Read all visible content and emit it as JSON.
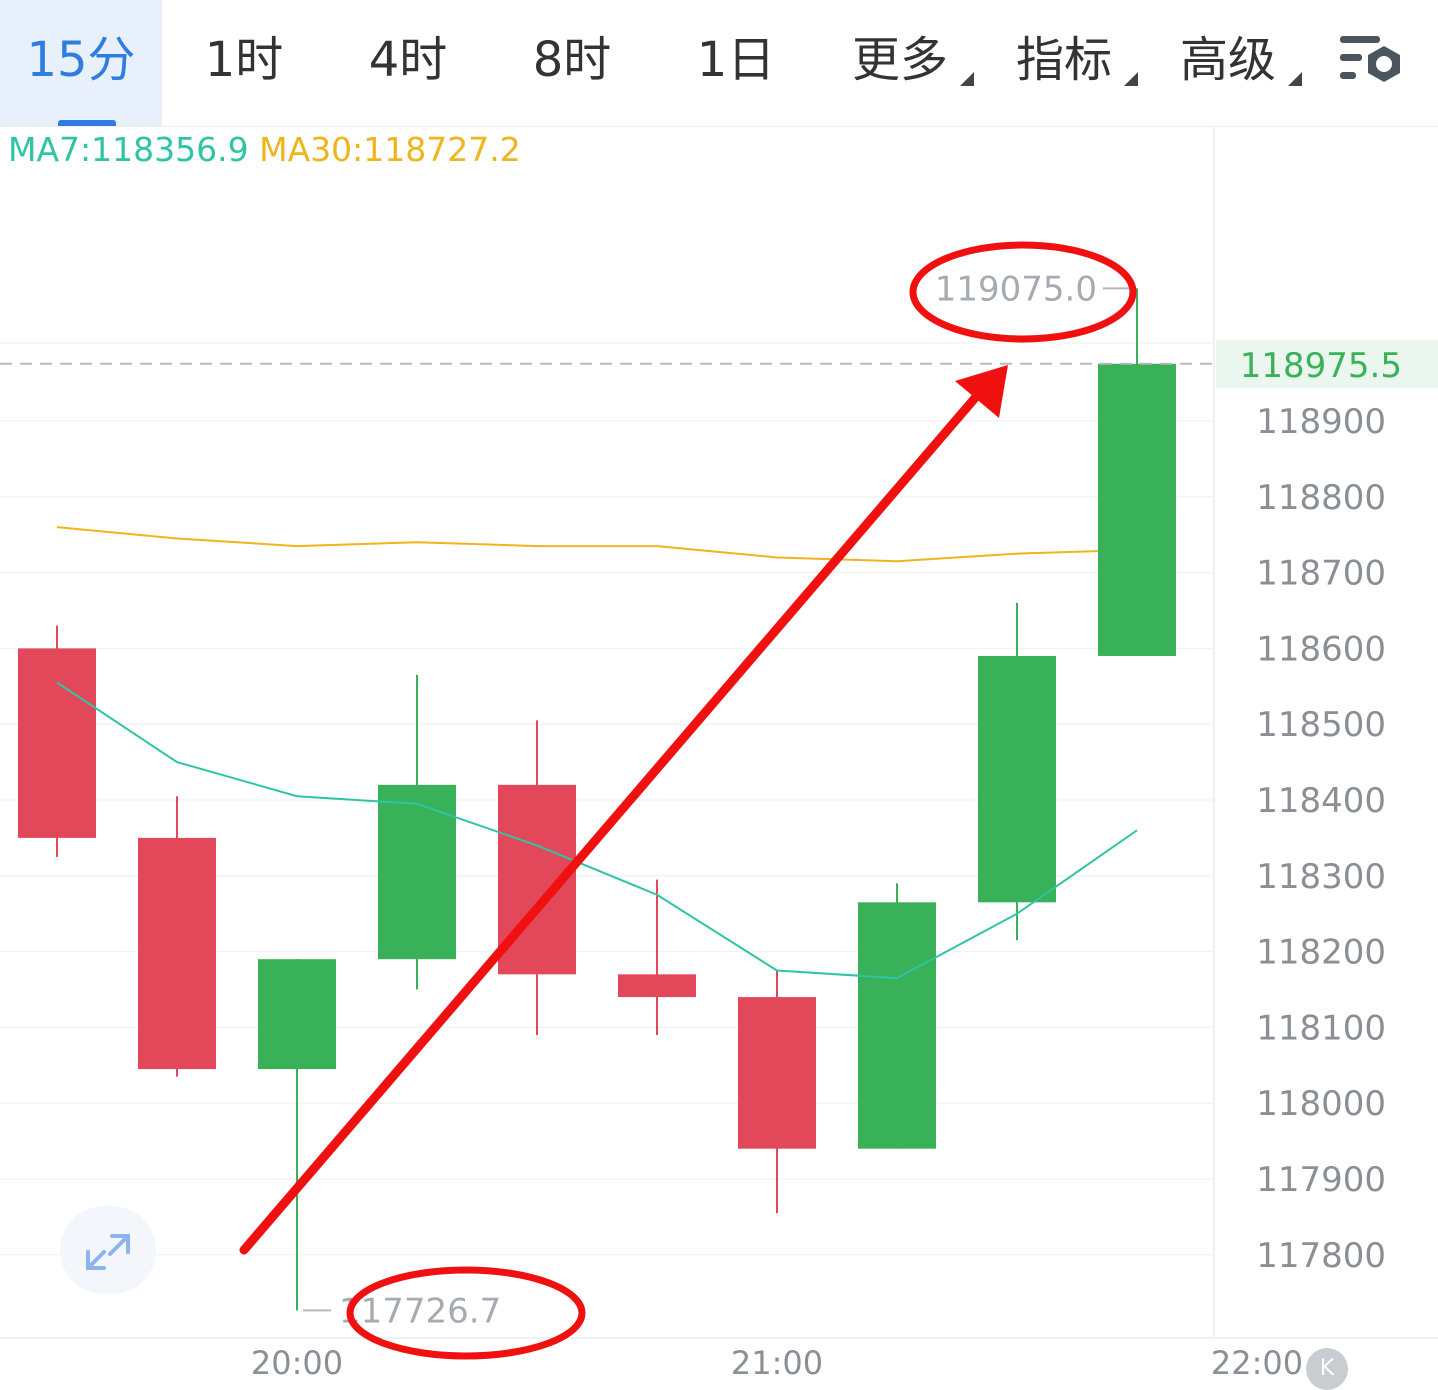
{
  "tabs": [
    {
      "label": "15分",
      "active": true,
      "dropdown": false
    },
    {
      "label": "1时",
      "active": false,
      "dropdown": false
    },
    {
      "label": "4时",
      "active": false,
      "dropdown": false
    },
    {
      "label": "8时",
      "active": false,
      "dropdown": false
    },
    {
      "label": "1日",
      "active": false,
      "dropdown": false
    },
    {
      "label": "更多",
      "active": false,
      "dropdown": true
    },
    {
      "label": "指标",
      "active": false,
      "dropdown": true
    },
    {
      "label": "高级",
      "active": false,
      "dropdown": true
    }
  ],
  "settings_icon": "chart-settings-icon",
  "ma": {
    "ma7_label": "MA7:118356.9",
    "ma30_label": "MA30:118727.2",
    "ma7_color": "#2fc4a4",
    "ma30_color": "#f0b41c"
  },
  "colors": {
    "up": "#38b158",
    "down": "#e2485a",
    "annotation": "#f01010"
  },
  "chart_data": {
    "type": "candlestick",
    "title": "",
    "x_ticks": [
      "20:00",
      "21:00",
      "22:00"
    ],
    "y_ticks": [
      118900,
      118800,
      118700,
      118600,
      118500,
      118400,
      118300,
      118200,
      118100,
      118000,
      117900,
      117800
    ],
    "ylim": [
      117700,
      119150
    ],
    "candles": [
      {
        "open": 118600,
        "high": 118630,
        "low": 118325,
        "close": 118350
      },
      {
        "open": 118350,
        "high": 118405,
        "low": 118035,
        "close": 118045
      },
      {
        "open": 118045,
        "high": 118190,
        "low": 117726.7,
        "close": 118190
      },
      {
        "open": 118190,
        "high": 118565,
        "low": 118150,
        "close": 118420
      },
      {
        "open": 118420,
        "high": 118505,
        "low": 118090,
        "close": 118170
      },
      {
        "open": 118170,
        "high": 118295,
        "low": 118090,
        "close": 118140
      },
      {
        "open": 118140,
        "high": 118175,
        "low": 117855,
        "close": 117940
      },
      {
        "open": 117940,
        "high": 118290,
        "low": 117940,
        "close": 118265
      },
      {
        "open": 118265,
        "high": 118660,
        "low": 118215,
        "close": 118590
      },
      {
        "open": 118590,
        "high": 119075.0,
        "low": 118590,
        "close": 118975.5
      }
    ],
    "ma7": [
      118555,
      118450,
      118405,
      118395,
      118340,
      118275,
      118175,
      118165,
      118250,
      118360
    ],
    "ma30": [
      118760,
      118745,
      118735,
      118740,
      118735,
      118735,
      118720,
      118715,
      118725,
      118730
    ],
    "high_label": "119075.0",
    "low_label": "117726.7",
    "last_price": 118975.5,
    "last_price_label": "118975.5"
  }
}
